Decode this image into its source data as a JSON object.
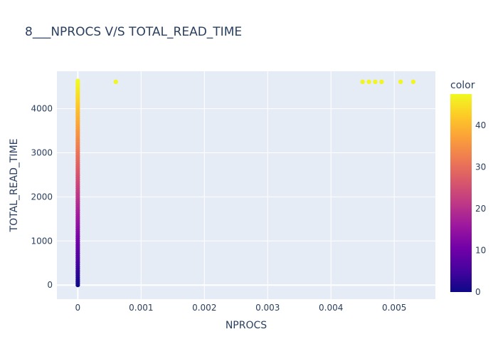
{
  "chart_data": {
    "type": "scatter",
    "title": "8___NPROCS V/S TOTAL_READ_TIME",
    "xlabel": "NPROCS",
    "ylabel": "TOTAL_READ_TIME",
    "xlim": [
      -0.00033,
      0.00565
    ],
    "ylim": [
      -320,
      4850
    ],
    "x_ticks": [
      0,
      0.001,
      0.002,
      0.003,
      0.004,
      0.005
    ],
    "x_tick_labels": [
      "0",
      "0.001",
      "0.002",
      "0.003",
      "0.004",
      "0.005"
    ],
    "y_ticks": [
      0,
      1000,
      2000,
      3000,
      4000
    ],
    "y_tick_labels": [
      "0",
      "1000",
      "2000",
      "3000",
      "4000"
    ],
    "grid": true,
    "colorscale": [
      "#0d0887",
      "#46039f",
      "#7201a8",
      "#9c179e",
      "#bd3786",
      "#d8576b",
      "#ed7953",
      "#fb9f3a",
      "#fdca26",
      "#f0f921"
    ],
    "colorbar": {
      "title": "color",
      "range": [
        0,
        47.5
      ],
      "ticks": [
        0,
        10,
        20,
        30,
        40
      ],
      "tick_labels": [
        "0",
        "10",
        "20",
        "30",
        "40"
      ]
    },
    "column_x": 0,
    "column_y_range": [
      0,
      4630
    ],
    "points": [
      {
        "x": 0.0006,
        "y": 4610,
        "color": 47
      },
      {
        "x": 0.0045,
        "y": 4610,
        "color": 47
      },
      {
        "x": 0.0046,
        "y": 4610,
        "color": 47
      },
      {
        "x": 0.0047,
        "y": 4610,
        "color": 47
      },
      {
        "x": 0.0048,
        "y": 4610,
        "color": 47
      },
      {
        "x": 0.0051,
        "y": 4610,
        "color": 47
      },
      {
        "x": 0.0053,
        "y": 4610,
        "color": 47
      }
    ],
    "background": "#e5ecf6",
    "grid_color": "#ffffff"
  }
}
